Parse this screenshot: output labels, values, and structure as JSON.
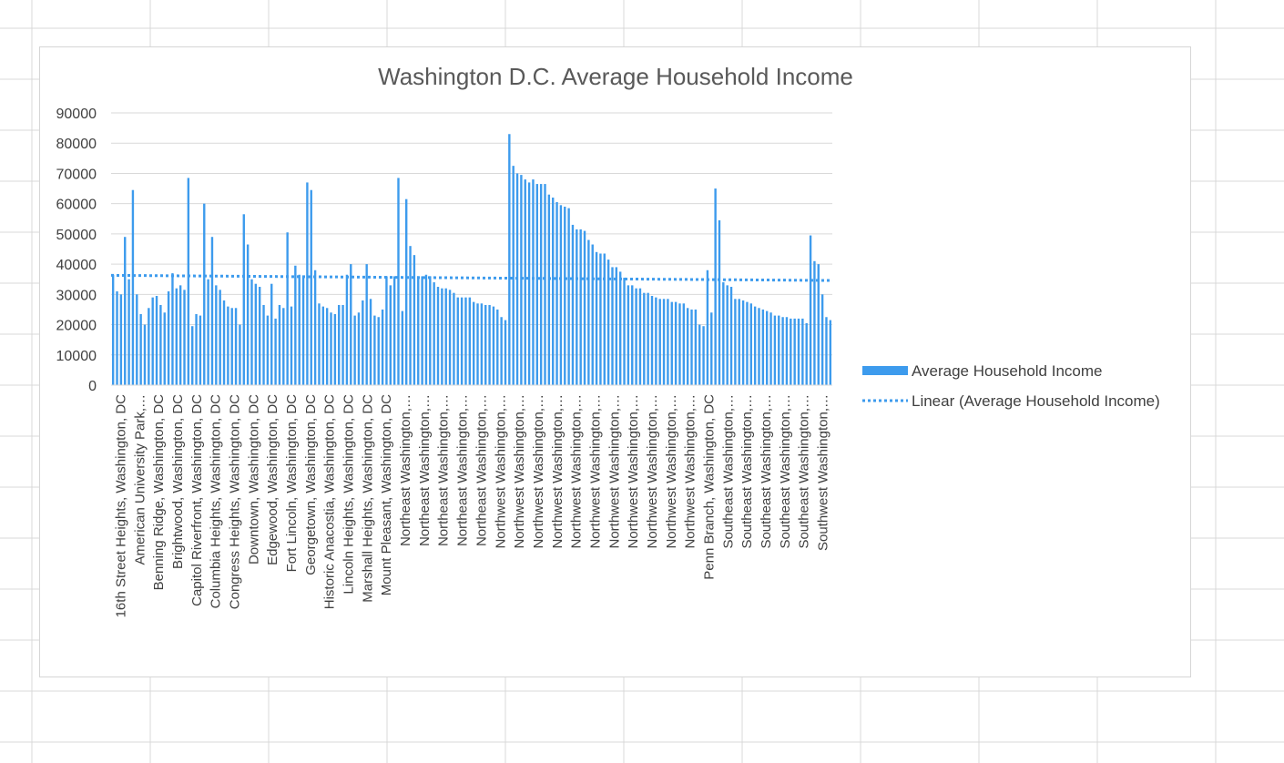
{
  "chart_data": {
    "type": "bar",
    "title": "Washington D.C. Average Household Income",
    "xlabel": "",
    "ylabel": "",
    "ylim": [
      0,
      90000
    ],
    "yticks": [
      0,
      10000,
      20000,
      30000,
      40000,
      50000,
      60000,
      70000,
      80000,
      90000
    ],
    "grid": true,
    "legend_position": "right",
    "bar_color": "#3d9bed",
    "trend_color": "#3d9bed",
    "series": [
      {
        "name": "Average Household Income",
        "values": [
          36500,
          31000,
          30000,
          49000,
          35000,
          64500,
          30000,
          23500,
          20000,
          25500,
          29000,
          29500,
          26500,
          24000,
          31000,
          37000,
          32000,
          33000,
          31500,
          68500,
          19500,
          23500,
          23000,
          60000,
          35000,
          49000,
          33000,
          31500,
          28000,
          26000,
          25500,
          25500,
          20000,
          56500,
          46500,
          35000,
          33500,
          32500,
          26500,
          23000,
          33500,
          22000,
          26500,
          25500,
          50500,
          26000,
          39500,
          36500,
          36000,
          67000,
          64500,
          38000,
          27000,
          26000,
          25500,
          24000,
          23500,
          26500,
          26500,
          36500,
          40000,
          23000,
          24000,
          28000,
          40000,
          28500,
          23000,
          22500,
          25000,
          36000,
          33000,
          36000,
          68500,
          24500,
          61500,
          46000,
          43000,
          36000,
          36000,
          36500,
          36000,
          34000,
          32500,
          32000,
          32000,
          31500,
          30500,
          29000,
          29000,
          29000,
          29000,
          27500,
          27000,
          27000,
          26500,
          26500,
          26000,
          25000,
          22500,
          21500,
          83000,
          72500,
          70000,
          69500,
          68000,
          67000,
          68000,
          66500,
          66500,
          66500,
          63000,
          62000,
          60500,
          59500,
          59000,
          58500,
          53000,
          51500,
          51500,
          51000,
          48000,
          46500,
          44000,
          43500,
          43500,
          41500,
          39000,
          39000,
          37500,
          35500,
          33000,
          33000,
          32000,
          32000,
          30500,
          30500,
          29500,
          29000,
          28500,
          28500,
          28500,
          27500,
          27500,
          27000,
          27000,
          25500,
          25000,
          25000,
          20000,
          19500,
          38000,
          24000,
          65000,
          54500,
          34000,
          33000,
          32500,
          28500,
          28500,
          28000,
          27500,
          27000,
          26000,
          25500,
          25000,
          24500,
          24000,
          23000,
          23000,
          22500,
          22500,
          22000,
          22000,
          22000,
          22000,
          20500,
          49500,
          41000,
          40000,
          30000,
          22500,
          21500
        ]
      }
    ],
    "trendline": {
      "name": "Linear (Average Household Income)",
      "start": 36300,
      "end": 34600
    },
    "category_labels": [
      "16th Street Heights, Washington, DC",
      "American University Park,…",
      "Benning Ridge, Washington, DC",
      "Brightwood, Washington, DC",
      "Capitol Riverfront, Washington, DC",
      "Columbia Heights, Washington, DC",
      "Congress Heights, Washington, DC",
      "Downtown, Washington, DC",
      "Edgewood, Washington, DC",
      "Fort Lincoln, Washington, DC",
      "Georgetown, Washington, DC",
      "Historic Anacostia, Washington, DC",
      "Lincoln Heights, Washington, DC",
      "Marshall Heights, Washington, DC",
      "Mount Pleasant, Washington, DC",
      "Northeast Washington,…",
      "Northeast Washington,…",
      "Northeast Washington,…",
      "Northeast Washington,…",
      "Northeast Washington,…",
      "Northwest Washington,…",
      "Northwest Washington,…",
      "Northwest Washington,…",
      "Northwest Washington,…",
      "Northwest Washington,…",
      "Northwest Washington,…",
      "Northwest Washington,…",
      "Northwest Washington,…",
      "Northwest Washington,…",
      "Northwest Washington,…",
      "Northwest Washington,…",
      "Penn Branch, Washington, DC",
      "Southeast Washington,…",
      "Southeast Washington,…",
      "Southeast Washington,…",
      "Southeast Washington,…",
      "Southeast Washington,…",
      "Southwest Washington,…"
    ]
  }
}
